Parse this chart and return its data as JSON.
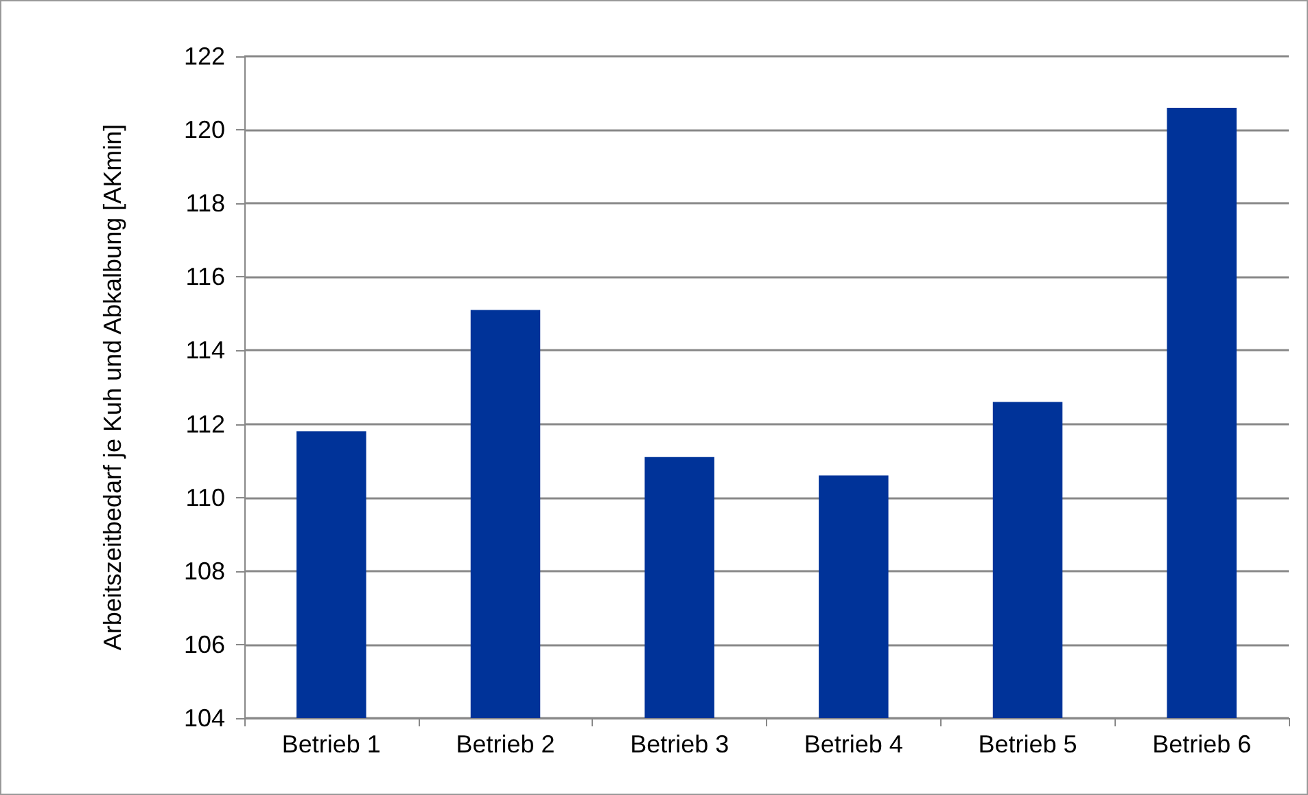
{
  "chart_data": {
    "type": "bar",
    "ylabel": "Arbeitszeitbedarf je Kuh und Abkalbung [AKmin]",
    "categories": [
      "Betrieb 1",
      "Betrieb 2",
      "Betrieb 3",
      "Betrieb 4",
      "Betrieb 5",
      "Betrieb 6"
    ],
    "values": [
      111.8,
      115.1,
      111.1,
      110.6,
      112.6,
      120.6
    ],
    "color": "#003399",
    "ylim": [
      104,
      122
    ],
    "yticks": [
      104,
      106,
      108,
      110,
      112,
      114,
      116,
      118,
      120,
      122
    ],
    "grid": "y"
  }
}
